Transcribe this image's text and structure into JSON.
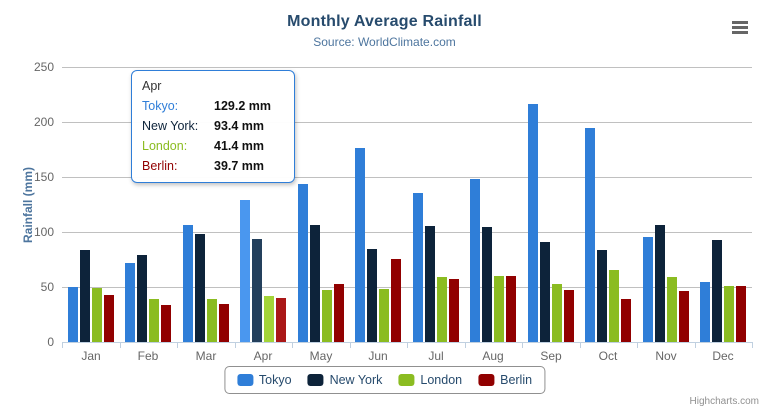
{
  "chart_data": {
    "type": "bar",
    "title": "Monthly Average Rainfall",
    "subtitle": "Source: WorldClimate.com",
    "xlabel": "",
    "ylabel": "Rainfall (mm)",
    "ylim": [
      0,
      250
    ],
    "ytick_interval": 50,
    "grid": true,
    "legend_position": "bottom",
    "categories": [
      "Jan",
      "Feb",
      "Mar",
      "Apr",
      "May",
      "Jun",
      "Jul",
      "Aug",
      "Sep",
      "Oct",
      "Nov",
      "Dec"
    ],
    "hovered_category_index": 3,
    "series": [
      {
        "name": "Tokyo",
        "color": "#2f7ed8",
        "hover_color": "#4a97ef",
        "values": [
          49.9,
          71.5,
          106.4,
          129.2,
          144.0,
          176.0,
          135.6,
          148.5,
          216.4,
          194.1,
          95.6,
          54.4
        ]
      },
      {
        "name": "New York",
        "color": "#0d233a",
        "hover_color": "#24405c",
        "values": [
          83.6,
          78.8,
          98.5,
          93.4,
          106.0,
          84.5,
          105.0,
          104.3,
          91.2,
          83.5,
          106.6,
          92.3
        ]
      },
      {
        "name": "London",
        "color": "#8bbc21",
        "hover_color": "#a3d438",
        "values": [
          48.9,
          38.8,
          39.3,
          41.4,
          47.0,
          48.3,
          59.0,
          59.6,
          52.4,
          65.2,
          59.3,
          51.2
        ]
      },
      {
        "name": "Berlin",
        "color": "#910000",
        "hover_color": "#aa1717",
        "values": [
          42.4,
          33.2,
          34.5,
          39.7,
          52.6,
          75.5,
          57.4,
          60.4,
          47.6,
          39.1,
          46.8,
          51.1
        ]
      }
    ],
    "colors": {
      "axis_line": "#C0D0E0",
      "gridline": "#C0C0C0",
      "axis_label": "#666666",
      "title": "#274b6d",
      "subtitle": "#4d759e",
      "legend_text": "#274b6d",
      "legend_border": "#909090"
    }
  },
  "tooltip": {
    "header": "Apr",
    "unit": "mm",
    "rows": [
      {
        "name": "Tokyo",
        "value": "129.2",
        "color": "#2f7ed8"
      },
      {
        "name": "New York",
        "value": "93.4",
        "color": "#0d233a"
      },
      {
        "name": "London",
        "value": "41.4",
        "color": "#8bbc21"
      },
      {
        "name": "Berlin",
        "value": "39.7",
        "color": "#910000"
      }
    ]
  },
  "credits": "Highcharts.com",
  "menu": {
    "icon": "hamburger-icon"
  }
}
